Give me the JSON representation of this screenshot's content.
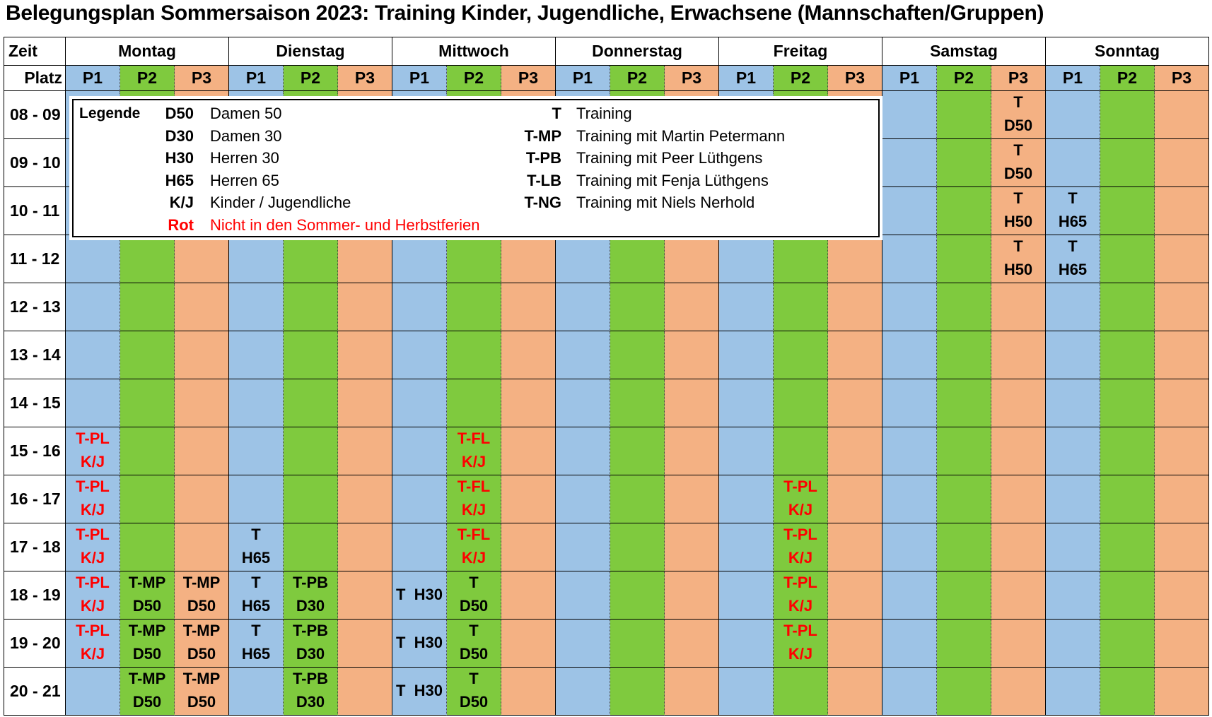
{
  "title": "Belegungsplan Sommersaison 2023: Training Kinder, Jugendliche, Erwachsene (Mannschaften/Gruppen)",
  "header": {
    "time_label": "Zeit",
    "court_label": "Platz",
    "days": [
      "Montag",
      "Dienstag",
      "Mittwoch",
      "Donnerstag",
      "Freitag",
      "Samstag",
      "Sonntag"
    ],
    "courts": [
      "P1",
      "P2",
      "P3"
    ]
  },
  "court_colors": [
    "#9dc3e6",
    "#7fca3e",
    "#f4b183"
  ],
  "rows": [
    {
      "time": "08 - 09",
      "cells": [
        null,
        null,
        null,
        null,
        null,
        null,
        null,
        null,
        null,
        null,
        null,
        null,
        null,
        null,
        null,
        null,
        null,
        {
          "lines": [
            "T",
            "D50"
          ]
        },
        null,
        null,
        null
      ]
    },
    {
      "time": "09 - 10",
      "cells": [
        null,
        null,
        null,
        null,
        null,
        null,
        null,
        null,
        null,
        null,
        null,
        null,
        null,
        null,
        null,
        null,
        null,
        {
          "lines": [
            "T",
            "D50"
          ]
        },
        null,
        null,
        null
      ]
    },
    {
      "time": "10 - 11",
      "cells": [
        null,
        null,
        null,
        null,
        null,
        null,
        null,
        null,
        null,
        null,
        null,
        null,
        null,
        null,
        null,
        null,
        null,
        {
          "lines": [
            "T",
            "H50"
          ]
        },
        {
          "lines": [
            "T",
            "H65"
          ]
        },
        null,
        null
      ]
    },
    {
      "time": "11 - 12",
      "cells": [
        null,
        null,
        null,
        null,
        null,
        null,
        null,
        null,
        null,
        null,
        null,
        null,
        null,
        null,
        null,
        null,
        null,
        {
          "lines": [
            "T",
            "H50"
          ]
        },
        {
          "lines": [
            "T",
            "H65"
          ]
        },
        null,
        null
      ]
    },
    {
      "time": "12 - 13",
      "cells": [
        null,
        null,
        null,
        null,
        null,
        null,
        null,
        null,
        null,
        null,
        null,
        null,
        null,
        null,
        null,
        null,
        null,
        null,
        null,
        null,
        null
      ]
    },
    {
      "time": "13 - 14",
      "cells": [
        null,
        null,
        null,
        null,
        null,
        null,
        null,
        null,
        null,
        null,
        null,
        null,
        null,
        null,
        null,
        null,
        null,
        null,
        null,
        null,
        null
      ]
    },
    {
      "time": "14 - 15",
      "cells": [
        null,
        null,
        null,
        null,
        null,
        null,
        null,
        null,
        null,
        null,
        null,
        null,
        null,
        null,
        null,
        null,
        null,
        null,
        null,
        null,
        null
      ]
    },
    {
      "time": "15 - 16",
      "cells": [
        {
          "lines": [
            "T-PL",
            "K/J"
          ],
          "color": "#ff0000"
        },
        null,
        null,
        null,
        null,
        null,
        null,
        {
          "lines": [
            "T-FL",
            "K/J"
          ],
          "color": "#ff0000"
        },
        null,
        null,
        null,
        null,
        null,
        null,
        null,
        null,
        null,
        null,
        null,
        null,
        null
      ]
    },
    {
      "time": "16 - 17",
      "cells": [
        {
          "lines": [
            "T-PL",
            "K/J"
          ],
          "color": "#ff0000"
        },
        null,
        null,
        null,
        null,
        null,
        null,
        {
          "lines": [
            "T-FL",
            "K/J"
          ],
          "color": "#ff0000"
        },
        null,
        null,
        null,
        null,
        null,
        {
          "lines": [
            "T-PL",
            "K/J"
          ],
          "color": "#ff0000"
        },
        null,
        null,
        null,
        null,
        null,
        null,
        null
      ]
    },
    {
      "time": "17 - 18",
      "cells": [
        {
          "lines": [
            "T-PL",
            "K/J"
          ],
          "color": "#ff0000"
        },
        null,
        null,
        {
          "lines": [
            "T",
            "H65"
          ]
        },
        null,
        null,
        null,
        {
          "lines": [
            "T-FL",
            "K/J"
          ],
          "color": "#ff0000"
        },
        null,
        null,
        null,
        null,
        null,
        {
          "lines": [
            "T-PL",
            "K/J"
          ],
          "color": "#ff0000"
        },
        null,
        null,
        null,
        null,
        null,
        null,
        null
      ]
    },
    {
      "time": "18 - 19",
      "cells": [
        {
          "lines": [
            "T-PL",
            "K/J"
          ],
          "color": "#ff0000"
        },
        {
          "lines": [
            "T-MP",
            "D50"
          ]
        },
        {
          "lines": [
            "T-MP",
            "D50"
          ]
        },
        {
          "lines": [
            "T",
            "H65"
          ]
        },
        {
          "lines": [
            "T-PB",
            "D30"
          ]
        },
        null,
        {
          "lines": [
            "T  H30"
          ]
        },
        {
          "lines": [
            "T",
            "D50"
          ]
        },
        null,
        null,
        null,
        null,
        null,
        {
          "lines": [
            "T-PL",
            "K/J"
          ],
          "color": "#ff0000"
        },
        null,
        null,
        null,
        null,
        null,
        null,
        null
      ]
    },
    {
      "time": "19 - 20",
      "cells": [
        {
          "lines": [
            "T-PL",
            "K/J"
          ],
          "color": "#ff0000"
        },
        {
          "lines": [
            "T-MP",
            "D50"
          ]
        },
        {
          "lines": [
            "T-MP",
            "D50"
          ]
        },
        {
          "lines": [
            "T",
            "H65"
          ]
        },
        {
          "lines": [
            "T-PB",
            "D30"
          ]
        },
        null,
        {
          "lines": [
            "T  H30"
          ]
        },
        {
          "lines": [
            "T",
            "D50"
          ]
        },
        null,
        null,
        null,
        null,
        null,
        {
          "lines": [
            "T-PL",
            "K/J"
          ],
          "color": "#ff0000"
        },
        null,
        null,
        null,
        null,
        null,
        null,
        null
      ]
    },
    {
      "time": "20 - 21",
      "cells": [
        null,
        {
          "lines": [
            "T-MP",
            "D50"
          ]
        },
        {
          "lines": [
            "T-MP",
            "D50"
          ]
        },
        null,
        {
          "lines": [
            "T-PB",
            "D30"
          ]
        },
        null,
        {
          "lines": [
            "T  H30"
          ]
        },
        {
          "lines": [
            "T",
            "D50"
          ]
        },
        null,
        null,
        null,
        null,
        null,
        null,
        null,
        null,
        null,
        null,
        null,
        null,
        null
      ]
    }
  ],
  "legend": {
    "title": "Legende",
    "left": [
      {
        "code": "D50",
        "text": "Damen 50"
      },
      {
        "code": "D30",
        "text": "Damen 30"
      },
      {
        "code": "H30",
        "text": "Herren 30"
      },
      {
        "code": "H65",
        "text": "Herren 65"
      },
      {
        "code": "K/J",
        "text": "Kinder / Jugendliche"
      },
      {
        "code": "Rot",
        "text": "Nicht in den Sommer- und Herbstferien",
        "color": "#ff0000"
      }
    ],
    "right": [
      {
        "code": "T",
        "text": "Training"
      },
      {
        "code": "T-MP",
        "text": "Training mit Martin Petermann"
      },
      {
        "code": "T-PB",
        "text": "Training mit Peer Lüthgens"
      },
      {
        "code": "T-LB",
        "text": "Training mit Fenja Lüthgens"
      },
      {
        "code": "T-NG",
        "text": "Training mit Niels Nerhold"
      }
    ]
  }
}
